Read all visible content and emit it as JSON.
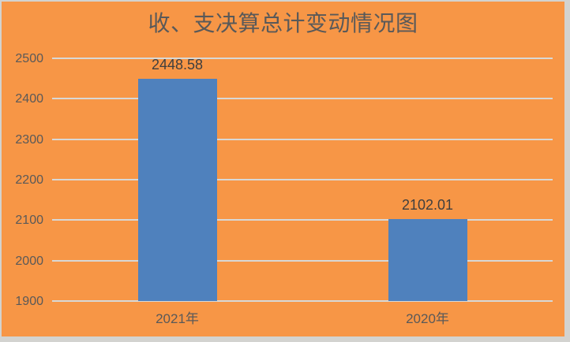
{
  "chart_data": {
    "type": "bar",
    "title": "收、支决算总计变动情况图",
    "categories": [
      "2021年",
      "2020年"
    ],
    "values": [
      2448.58,
      2102.01
    ],
    "data_labels": [
      "2448.58",
      "2102.01"
    ],
    "xlabel": "",
    "ylabel": "",
    "ylim": [
      1900,
      2500
    ],
    "ytick_interval": 100,
    "yticks": [
      2500,
      2400,
      2300,
      2200,
      2100,
      2000,
      1900
    ],
    "grid": true,
    "legend_position": "none",
    "colors": {
      "outer_frame": "#D3D3D0",
      "plot_background": "#F79646",
      "bar_fill": "#4F81BD",
      "gridline": "#D8D8D6",
      "title_text": "#595959",
      "tick_text": "#595959",
      "data_label_text": "#3F3F3F"
    }
  }
}
